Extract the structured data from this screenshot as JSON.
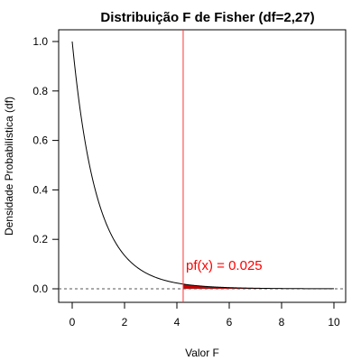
{
  "chart_data": {
    "type": "line",
    "title": "Distribuição F de Fisher (df=2,27)",
    "xlabel": "Valor F",
    "ylabel": "Densidade Probabilística (df)",
    "xlim": [
      0,
      10
    ],
    "ylim": [
      0,
      1
    ],
    "x_ticks": [
      "0",
      "2",
      "4",
      "6",
      "8",
      "10"
    ],
    "y_ticks": [
      "0.0",
      "0.2",
      "0.4",
      "0.6",
      "0.8",
      "1.0"
    ],
    "series": [
      {
        "function": "F density",
        "df1": 2,
        "df2": 27,
        "x_range": [
          0,
          10
        ]
      }
    ],
    "critical_value": 4.24,
    "tail_area_label": "pf(x) = 0.025",
    "horizontal_reference": 0,
    "colors": {
      "curve": "#000000",
      "critical_line": "#ff3333",
      "tail_fill": "#cc0000",
      "annotation": "#ff0000",
      "reference_line": "#555555"
    }
  }
}
